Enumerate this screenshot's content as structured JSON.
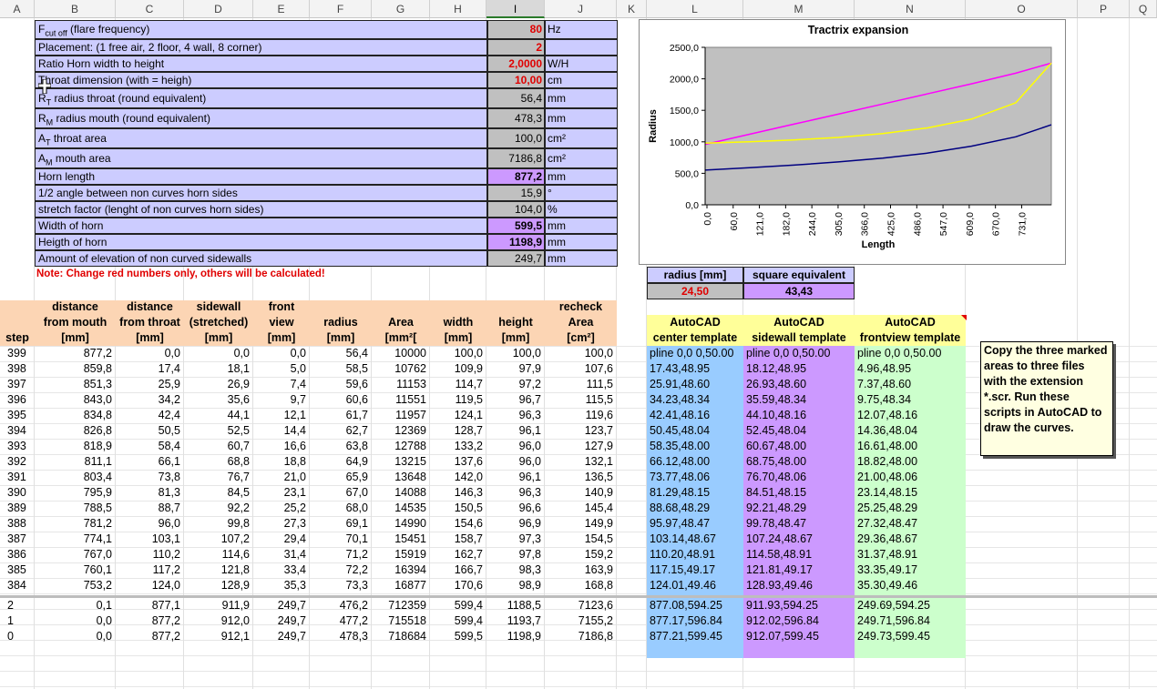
{
  "columns": [
    "A",
    "B",
    "C",
    "D",
    "E",
    "F",
    "G",
    "H",
    "I",
    "J",
    "K",
    "L",
    "M",
    "N",
    "O",
    "P",
    "Q"
  ],
  "selected_column": "I",
  "params": [
    {
      "label": "F",
      "sub": "cut off",
      "rest": " (flare frequency)",
      "value": "80",
      "unit": "Hz",
      "style": "red"
    },
    {
      "label": "Placement: (1 free air, 2 floor, 4 wall, 8 corner)",
      "sub": "",
      "rest": "",
      "value": "2",
      "unit": "",
      "style": "red"
    },
    {
      "label": "Ratio Horn width to height",
      "sub": "",
      "rest": "",
      "value": "2,0000",
      "unit": "W/H",
      "style": "red"
    },
    {
      "label": "Throat dimension (with = heigh)",
      "sub": "",
      "rest": "",
      "value": "10,00",
      "unit": "cm",
      "style": "red"
    },
    {
      "label": "R",
      "sub": "T",
      "rest": " radius throat (round equivalent)",
      "value": "56,4",
      "unit": "mm",
      "style": "calc"
    },
    {
      "label": "R",
      "sub": "M",
      "rest": " radius mouth (round equivalent)",
      "value": "478,3",
      "unit": "mm",
      "style": "calc"
    },
    {
      "label": "A",
      "sub": "T",
      "rest": " throat area",
      "value": "100,0",
      "unit": "cm²",
      "style": "calc"
    },
    {
      "label": "A",
      "sub": "M",
      "rest": " mouth area",
      "value": "7186,8",
      "unit": "cm²",
      "style": "calc"
    },
    {
      "label": "Horn length",
      "sub": "",
      "rest": "",
      "value": "877,2",
      "unit": "mm",
      "style": "purple"
    },
    {
      "label": "1/2 angle between non curves horn sides",
      "sub": "",
      "rest": "",
      "value": "15,9",
      "unit": "°",
      "style": "calc"
    },
    {
      "label": "stretch factor (lenght of non curves horn sides)",
      "sub": "",
      "rest": "",
      "value": "104,0",
      "unit": "%",
      "style": "calc"
    },
    {
      "label": "Width of horn",
      "sub": "",
      "rest": "",
      "value": "599,5",
      "unit": "mm",
      "style": "purple"
    },
    {
      "label": "Heigth of horn",
      "sub": "",
      "rest": "",
      "value": "1198,9",
      "unit": "mm",
      "style": "purple"
    },
    {
      "label": "Amount of elevation of non curved sidewalls",
      "sub": "",
      "rest": "",
      "value": "249,7",
      "unit": "mm",
      "style": "calc"
    }
  ],
  "note_red": "Note: Change red numbers only, others will be calculated!",
  "radius_box": {
    "h1": "radius [mm]",
    "h2": "square equivalent",
    "v1": "24,50",
    "v2": "43,43"
  },
  "table_headers": [
    "step",
    "distance\nfrom mouth\n[mm]",
    "distance\nfrom throat\n[mm]",
    "sidewall\n(stretched)\n[mm]",
    "front\nview\n[mm]",
    "radius\n[mm]",
    "Area\n[mm²[",
    "width\n[mm]",
    "height\n[mm]",
    "recheck\nArea\n[cm²]"
  ],
  "rows": [
    [
      "399",
      "877,2",
      "0,0",
      "0,0",
      "0,0",
      "56,4",
      "10000",
      "100,0",
      "100,0",
      "100,0"
    ],
    [
      "398",
      "859,8",
      "17,4",
      "18,1",
      "5,0",
      "58,5",
      "10762",
      "109,9",
      "97,9",
      "107,6"
    ],
    [
      "397",
      "851,3",
      "25,9",
      "26,9",
      "7,4",
      "59,6",
      "11153",
      "114,7",
      "97,2",
      "111,5"
    ],
    [
      "396",
      "843,0",
      "34,2",
      "35,6",
      "9,7",
      "60,6",
      "11551",
      "119,5",
      "96,7",
      "115,5"
    ],
    [
      "395",
      "834,8",
      "42,4",
      "44,1",
      "12,1",
      "61,7",
      "11957",
      "124,1",
      "96,3",
      "119,6"
    ],
    [
      "394",
      "826,8",
      "50,5",
      "52,5",
      "14,4",
      "62,7",
      "12369",
      "128,7",
      "96,1",
      "123,7"
    ],
    [
      "393",
      "818,9",
      "58,4",
      "60,7",
      "16,6",
      "63,8",
      "12788",
      "133,2",
      "96,0",
      "127,9"
    ],
    [
      "392",
      "811,1",
      "66,1",
      "68,8",
      "18,8",
      "64,9",
      "13215",
      "137,6",
      "96,0",
      "132,1"
    ],
    [
      "391",
      "803,4",
      "73,8",
      "76,7",
      "21,0",
      "65,9",
      "13648",
      "142,0",
      "96,1",
      "136,5"
    ],
    [
      "390",
      "795,9",
      "81,3",
      "84,5",
      "23,1",
      "67,0",
      "14088",
      "146,3",
      "96,3",
      "140,9"
    ],
    [
      "389",
      "788,5",
      "88,7",
      "92,2",
      "25,2",
      "68,0",
      "14535",
      "150,5",
      "96,6",
      "145,4"
    ],
    [
      "388",
      "781,2",
      "96,0",
      "99,8",
      "27,3",
      "69,1",
      "14990",
      "154,6",
      "96,9",
      "149,9"
    ],
    [
      "387",
      "774,1",
      "103,1",
      "107,2",
      "29,4",
      "70,1",
      "15451",
      "158,7",
      "97,3",
      "154,5"
    ],
    [
      "386",
      "767,0",
      "110,2",
      "114,6",
      "31,4",
      "71,2",
      "15919",
      "162,7",
      "97,8",
      "159,2"
    ],
    [
      "385",
      "760,1",
      "117,2",
      "121,8",
      "33,4",
      "72,2",
      "16394",
      "166,7",
      "98,3",
      "163,9"
    ],
    [
      "384",
      "753,2",
      "124,0",
      "128,9",
      "35,3",
      "73,3",
      "16877",
      "170,6",
      "98,9",
      "168,8"
    ]
  ],
  "rows_bottom": [
    [
      "2",
      "0,1",
      "877,1",
      "911,9",
      "249,7",
      "476,2",
      "712359",
      "599,4",
      "1188,5",
      "7123,6"
    ],
    [
      "1",
      "0,0",
      "877,2",
      "912,0",
      "249,7",
      "477,2",
      "715518",
      "599,4",
      "1193,7",
      "7155,2"
    ],
    [
      "0",
      "0,0",
      "877,2",
      "912,1",
      "249,7",
      "478,3",
      "718684",
      "599,5",
      "1198,9",
      "7186,8"
    ]
  ],
  "autocad_headers": [
    "AutoCAD\ncenter template",
    "AutoCAD\nsidewall template",
    "AutoCAD\nfrontview template"
  ],
  "autocad_center": [
    "pline 0,0 0,50.00",
    "17.43,48.95",
    "25.91,48.60",
    "34.23,48.34",
    "42.41,48.16",
    "50.45,48.04",
    "58.35,48.00",
    "66.12,48.00",
    "73.77,48.06",
    "81.29,48.15",
    "88.68,48.29",
    "95.97,48.47",
    "103.14,48.67",
    "110.20,48.91",
    "117.15,49.17",
    "124.01,49.46"
  ],
  "autocad_side": [
    "pline 0,0 0,50.00",
    "18.12,48.95",
    "26.93,48.60",
    "35.59,48.34",
    "44.10,48.16",
    "52.45,48.04",
    "60.67,48.00",
    "68.75,48.00",
    "76.70,48.06",
    "84.51,48.15",
    "92.21,48.29",
    "99.78,48.47",
    "107.24,48.67",
    "114.58,48.91",
    "121.81,49.17",
    "128.93,49.46"
  ],
  "autocad_front": [
    "pline 0,0 0,50.00",
    "4.96,48.95",
    "7.37,48.60",
    "9.75,48.34",
    "12.07,48.16",
    "14.36,48.04",
    "16.61,48.00",
    "18.82,48.00",
    "21.00,48.06",
    "23.14,48.15",
    "25.25,48.29",
    "27.32,48.47",
    "29.36,48.67",
    "31.37,48.91",
    "33.35,49.17",
    "35.30,49.46"
  ],
  "autocad_bottom_center": [
    "877.08,594.25",
    "877.17,596.84",
    "877.21,599.45"
  ],
  "autocad_bottom_side": [
    "911.93,594.25",
    "912.02,596.84",
    "912.07,599.45"
  ],
  "autocad_bottom_front": [
    "249.69,594.25",
    "249.71,596.84",
    "249.73,599.45"
  ],
  "comment": "Copy the three marked areas to three files with the extension *.scr. Run these scripts in AutoCAD to draw the curves.",
  "colors": {
    "blue_col": "#99ccff",
    "purple_col": "#cc99ff",
    "green_col": "#ccffcc",
    "param_bg": "#ccccff",
    "header_orange": "#fcd5b4"
  },
  "chart_data": {
    "type": "line",
    "title": "Tractrix expansion",
    "xlabel": "Length",
    "ylabel": "Radius",
    "ylim": [
      0,
      2500
    ],
    "y_ticks": [
      "0,0",
      "500,0",
      "1000,0",
      "1500,0",
      "2000,0",
      "2500,0"
    ],
    "x_ticks": [
      "0,0",
      "60,0",
      "121,0",
      "182,0",
      "244,0",
      "305,0",
      "366,0",
      "425,0",
      "486,0",
      "547,0",
      "609,0",
      "670,0",
      "731,0"
    ],
    "x": [
      0,
      100,
      200,
      300,
      400,
      500,
      600,
      700,
      780
    ],
    "series": [
      {
        "color": "#ff00ff",
        "values": [
          960,
          1120,
          1280,
          1440,
          1600,
          1760,
          1920,
          2090,
          2250
        ]
      },
      {
        "color": "#ffff00",
        "values": [
          980,
          1000,
          1030,
          1070,
          1130,
          1220,
          1360,
          1620,
          2250
        ]
      },
      {
        "color": "#000080",
        "values": [
          550,
          590,
          630,
          680,
          740,
          820,
          930,
          1080,
          1270
        ]
      }
    ]
  }
}
